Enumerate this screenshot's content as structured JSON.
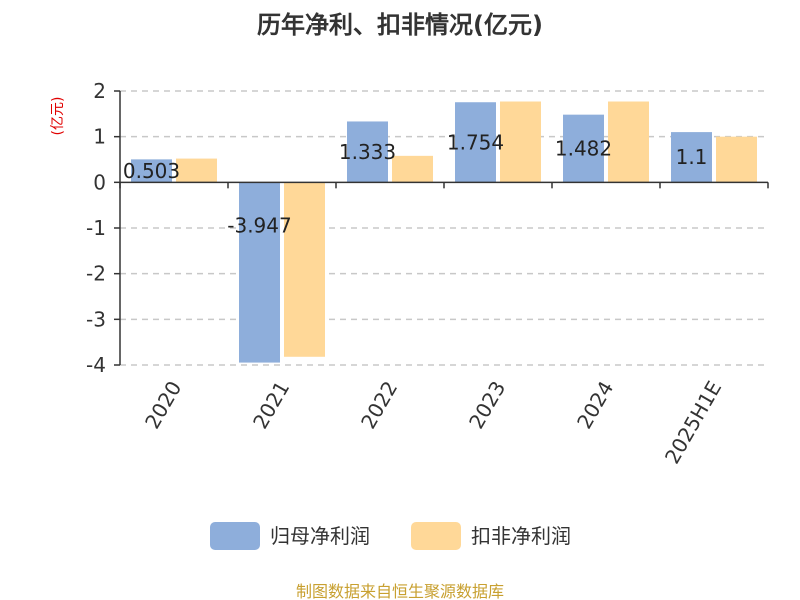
{
  "chart_data": {
    "type": "bar",
    "title": "历年净利、扣非情况(亿元)",
    "unit_label": "(亿元)",
    "categories": [
      "2020",
      "2021",
      "2022",
      "2023",
      "2024",
      "2025H1E"
    ],
    "series": [
      {
        "name": "归母净利润",
        "color": "#8eaedb",
        "values": [
          0.503,
          -3.947,
          1.333,
          1.754,
          1.482,
          1.1
        ],
        "labels": [
          "0.503",
          "-3.947",
          "1.333",
          "1.754",
          "1.482",
          "1.1"
        ]
      },
      {
        "name": "扣非净利润",
        "color": "#ffd898",
        "values": [
          0.52,
          -3.82,
          0.58,
          1.77,
          1.77,
          1.0
        ]
      }
    ],
    "ylim": [
      -4,
      2
    ],
    "yticks": [
      "2",
      "1",
      "0",
      "-1",
      "-2",
      "-3",
      "-4"
    ],
    "grid": true,
    "legend_position": "bottom"
  },
  "source_text": "制图数据来自恒生聚源数据库"
}
